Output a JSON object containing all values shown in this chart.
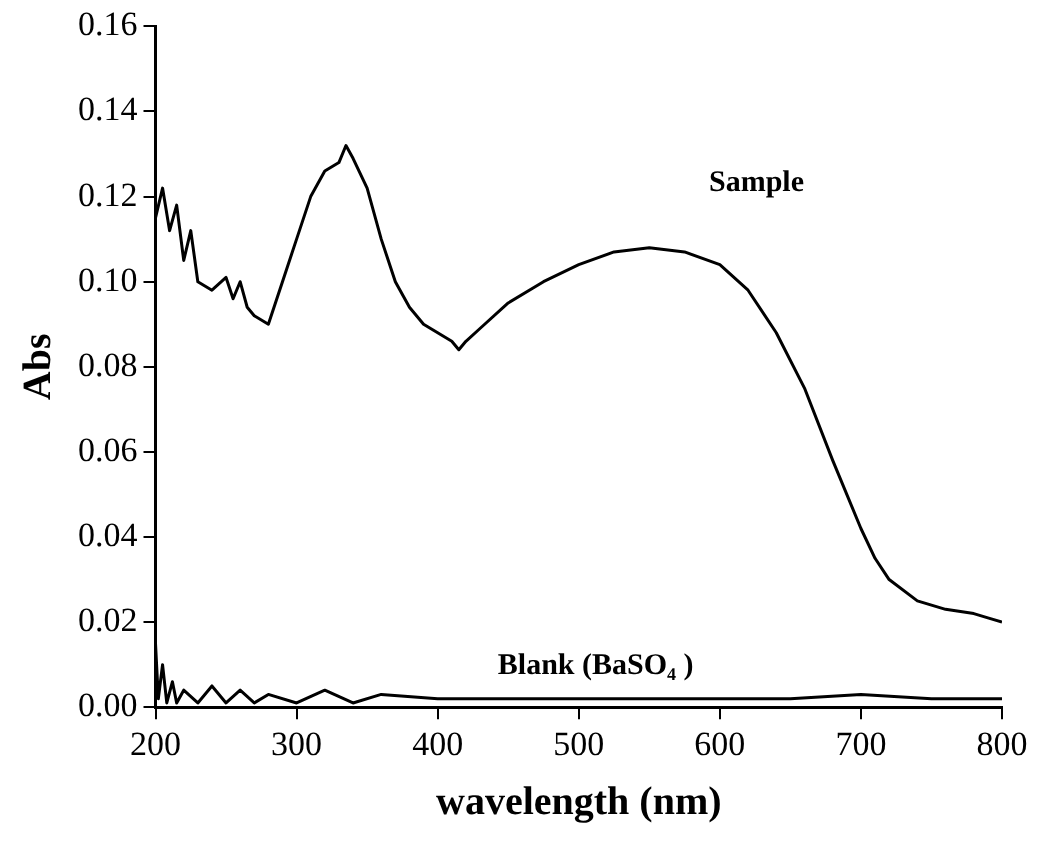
{
  "chart_data": {
    "type": "line",
    "xlabel": "wavelength (nm)",
    "ylabel": "Abs",
    "xlim": [
      200,
      800
    ],
    "xticks": [
      200,
      300,
      400,
      500,
      600,
      700,
      800
    ],
    "ylim": [
      0,
      0.16
    ],
    "yticks": [
      {
        "value": 0,
        "label": "0.00"
      },
      {
        "value": 0.02,
        "label": "0.02"
      },
      {
        "value": 0.04,
        "label": "0.04"
      },
      {
        "value": 0.06,
        "label": "0.06"
      },
      {
        "value": 0.08,
        "label": "0.08"
      },
      {
        "value": 0.1,
        "label": "0.10"
      },
      {
        "value": 0.12,
        "label": "0.12"
      },
      {
        "value": 0.14,
        "label": "0.14"
      },
      {
        "value": 0.16,
        "label": "0.16"
      }
    ],
    "grid": false,
    "legend": false,
    "marker": "none",
    "line_style": "solid",
    "series": [
      {
        "name": "Sample",
        "color": "#000000",
        "x": [
          200,
          205,
          210,
          215,
          220,
          225,
          230,
          240,
          250,
          255,
          260,
          265,
          270,
          280,
          285,
          290,
          300,
          310,
          320,
          330,
          335,
          340,
          350,
          360,
          370,
          380,
          390,
          400,
          410,
          415,
          420,
          430,
          450,
          475,
          500,
          525,
          550,
          575,
          600,
          620,
          640,
          660,
          680,
          700,
          710,
          720,
          740,
          760,
          780,
          790,
          800
        ],
        "values": [
          0.115,
          0.122,
          0.112,
          0.118,
          0.105,
          0.112,
          0.1,
          0.098,
          0.101,
          0.096,
          0.1,
          0.094,
          0.092,
          0.09,
          0.095,
          0.1,
          0.11,
          0.12,
          0.126,
          0.128,
          0.132,
          0.129,
          0.122,
          0.11,
          0.1,
          0.094,
          0.09,
          0.088,
          0.086,
          0.084,
          0.086,
          0.089,
          0.095,
          0.1,
          0.104,
          0.107,
          0.108,
          0.107,
          0.104,
          0.098,
          0.088,
          0.075,
          0.058,
          0.042,
          0.035,
          0.03,
          0.025,
          0.023,
          0.022,
          0.021,
          0.02
        ]
      },
      {
        "name": "Blank (BaSO₄ )",
        "color": "#000000",
        "x": [
          200,
          202,
          205,
          208,
          212,
          215,
          220,
          230,
          240,
          250,
          260,
          270,
          280,
          300,
          320,
          340,
          360,
          400,
          450,
          500,
          550,
          600,
          650,
          700,
          750,
          800
        ],
        "values": [
          0.015,
          0.002,
          0.01,
          0.001,
          0.006,
          0.001,
          0.004,
          0.001,
          0.005,
          0.001,
          0.004,
          0.001,
          0.003,
          0.001,
          0.004,
          0.001,
          0.003,
          0.002,
          0.002,
          0.002,
          0.002,
          0.002,
          0.002,
          0.003,
          0.002,
          0.002
        ]
      }
    ]
  }
}
